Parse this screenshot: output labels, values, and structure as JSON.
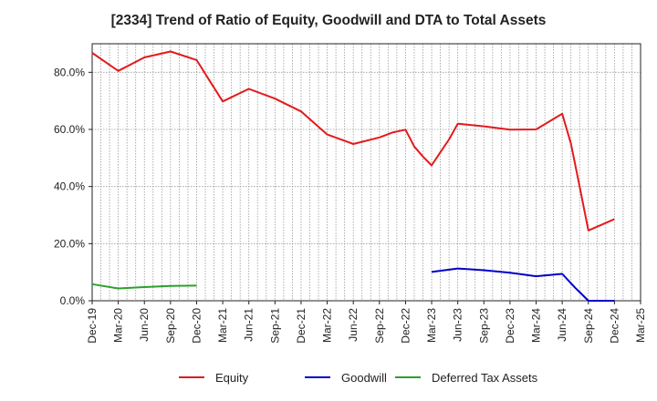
{
  "chart_data": {
    "type": "line",
    "title": "[2334]  Trend of Ratio of Equity, Goodwill and DTA to Total Assets",
    "xlabel": "",
    "ylabel": "",
    "ylim": [
      0,
      90
    ],
    "y_ticks": [
      0,
      20,
      40,
      60,
      80
    ],
    "y_tick_labels": [
      "0.0%",
      "20.0%",
      "40.0%",
      "60.0%",
      "80.0%"
    ],
    "x_range": [
      0,
      63
    ],
    "x_ticks": [
      0,
      3,
      6,
      9,
      12,
      15,
      18,
      21,
      24,
      27,
      30,
      33,
      36,
      39,
      42,
      45,
      48,
      51,
      54,
      57,
      60,
      63
    ],
    "x_tick_labels": [
      "Dec-19",
      "Mar-20",
      "Jun-20",
      "Sep-20",
      "Dec-20",
      "Mar-21",
      "Jun-21",
      "Sep-21",
      "Dec-21",
      "Mar-22",
      "Jun-22",
      "Sep-22",
      "Dec-22",
      "Mar-23",
      "Jun-23",
      "Sep-23",
      "Dec-23",
      "Mar-24",
      "Jun-24",
      "Sep-24",
      "Dec-24",
      "Mar-25"
    ],
    "grid": true,
    "legend_position": "bottom",
    "series": [
      {
        "name": "Equity",
        "color": "#e31a1c",
        "points": [
          [
            0,
            86.8
          ],
          [
            3,
            80.5
          ],
          [
            6,
            85.2
          ],
          [
            9,
            87.3
          ],
          [
            12,
            84.3
          ],
          [
            13.5,
            77
          ],
          [
            15,
            69.8
          ],
          [
            18,
            74.2
          ],
          [
            21,
            70.8
          ],
          [
            24,
            66.3
          ],
          [
            27,
            58.2
          ],
          [
            30,
            54.9
          ],
          [
            33,
            57.2
          ],
          [
            34.5,
            58.9
          ],
          [
            36,
            59.9
          ],
          [
            37,
            54
          ],
          [
            38,
            50.5
          ],
          [
            39,
            47.4
          ],
          [
            40,
            52
          ],
          [
            41,
            56.5
          ],
          [
            42,
            62
          ],
          [
            45,
            61.1
          ],
          [
            48,
            59.9
          ],
          [
            51,
            60
          ],
          [
            54,
            65.5
          ],
          [
            55,
            55
          ],
          [
            56,
            40
          ],
          [
            57,
            24.6
          ],
          [
            60,
            28.6
          ]
        ]
      },
      {
        "name": "Goodwill",
        "color": "#0000cc",
        "points": [
          [
            39,
            10.1
          ],
          [
            42,
            11.3
          ],
          [
            45,
            10.7
          ],
          [
            48,
            9.8
          ],
          [
            51,
            8.6
          ],
          [
            54,
            9.4
          ],
          [
            55.5,
            4.5
          ],
          [
            57,
            0
          ],
          [
            60,
            0
          ]
        ]
      },
      {
        "name": "Deferred Tax Assets",
        "color": "#2ca02c",
        "points": [
          [
            0,
            5.8
          ],
          [
            3,
            4.3
          ],
          [
            6,
            4.8
          ],
          [
            9,
            5.2
          ],
          [
            12,
            5.3
          ]
        ]
      }
    ]
  }
}
